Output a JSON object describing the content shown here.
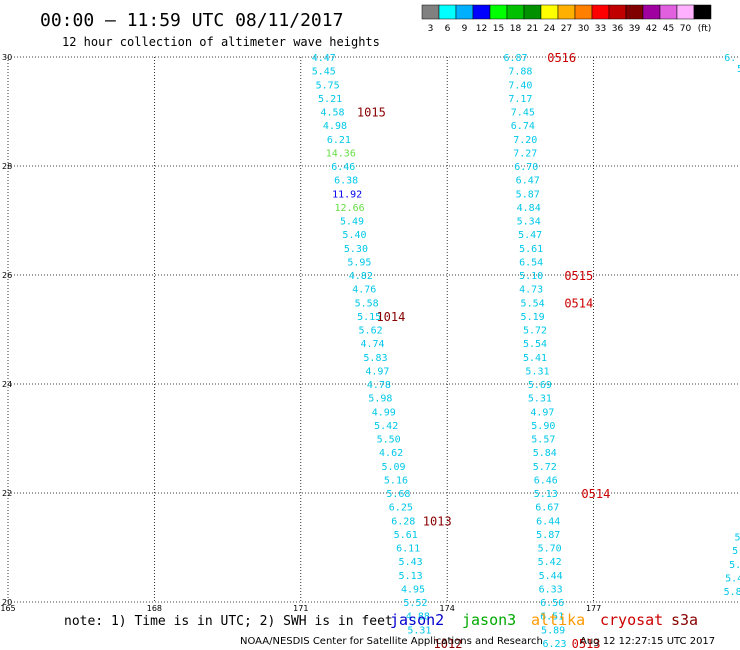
{
  "header": {
    "title": "00:00 – 11:59 UTC 08/11/2017",
    "subtitle": "12 hour collection of altimeter wave heights"
  },
  "colorbar": {
    "colors": [
      "#808080",
      "#00ffff",
      "#00b0ff",
      "#0000ff",
      "#00ff00",
      "#00c000",
      "#009000",
      "#ffff00",
      "#ffb000",
      "#ff8000",
      "#ff0000",
      "#c00000",
      "#800000",
      "#a000a0",
      "#e060e0",
      "#ffb0ff",
      "#000000"
    ],
    "labels": [
      "3",
      "6",
      "9",
      "12",
      "15",
      "18",
      "21",
      "24",
      "27",
      "30",
      "33",
      "36",
      "39",
      "42",
      "45",
      "70",
      "(ft)"
    ]
  },
  "footer": {
    "note": "note:  1) Time is in UTC;  2) SWH is in feet",
    "credit": "NOAA/NESDIS Center for Satellite Applications and Research",
    "timestamp": "Aug 12 12:27:15 UTC 2017",
    "satellites": [
      {
        "name": "jason2",
        "color": "#0000cc"
      },
      {
        "name": "jason3",
        "color": "#00aa00"
      },
      {
        "name": "altika",
        "color": "#ff9900"
      },
      {
        "name": "cryosat",
        "color": "#cc0000"
      },
      {
        "name": "s3a",
        "color": "#880000"
      }
    ]
  },
  "chart_data": {
    "type": "scatter",
    "xlim": [
      165,
      180
    ],
    "ylim": [
      20,
      30
    ],
    "x_ticks": [
      165,
      168,
      171,
      174,
      177
    ],
    "y_ticks": [
      20,
      22,
      24,
      26,
      28,
      30
    ],
    "x_tick_labels": [
      "165",
      "168",
      "171",
      "174",
      "177"
    ],
    "y_tick_labels": [
      "20",
      "22",
      "24",
      "26",
      "28",
      "30"
    ],
    "grid": "dotted",
    "tracks": [
      {
        "name": "track-1-left",
        "color_default": "#00c8e8",
        "points": [
          {
            "lon": 171.47,
            "lat": 30.0,
            "v": "4.47"
          },
          {
            "lon": 171.47,
            "lat": 29.75,
            "v": "5.45"
          },
          {
            "lon": 171.55,
            "lat": 29.5,
            "v": "5.75"
          },
          {
            "lon": 171.6,
            "lat": 29.25,
            "v": "5.21"
          },
          {
            "lon": 171.65,
            "lat": 29.0,
            "v": "4.58"
          },
          {
            "lon": 171.7,
            "lat": 28.75,
            "v": "4.98"
          },
          {
            "lon": 171.78,
            "lat": 28.5,
            "v": "6.21"
          },
          {
            "lon": 171.82,
            "lat": 28.25,
            "v": "14.36",
            "color": "#66dd44"
          },
          {
            "lon": 171.87,
            "lat": 28.0,
            "v": "6.46"
          },
          {
            "lon": 171.93,
            "lat": 27.75,
            "v": "6.38"
          },
          {
            "lon": 171.95,
            "lat": 27.5,
            "v": "11.92",
            "color": "#0000ee"
          },
          {
            "lon": 172.0,
            "lat": 27.25,
            "v": "12.66",
            "color": "#66dd44"
          },
          {
            "lon": 172.05,
            "lat": 27.0,
            "v": "5.49"
          },
          {
            "lon": 172.1,
            "lat": 26.75,
            "v": "5.40"
          },
          {
            "lon": 172.13,
            "lat": 26.5,
            "v": "5.30"
          },
          {
            "lon": 172.2,
            "lat": 26.25,
            "v": "5.95"
          },
          {
            "lon": 172.23,
            "lat": 26.0,
            "v": "4.82"
          },
          {
            "lon": 172.3,
            "lat": 25.75,
            "v": "4.76"
          },
          {
            "lon": 172.35,
            "lat": 25.5,
            "v": "5.58"
          },
          {
            "lon": 172.4,
            "lat": 25.25,
            "v": "5.15"
          },
          {
            "lon": 172.43,
            "lat": 25.0,
            "v": "5.62"
          },
          {
            "lon": 172.47,
            "lat": 24.75,
            "v": "4.74"
          },
          {
            "lon": 172.53,
            "lat": 24.5,
            "v": "5.83"
          },
          {
            "lon": 172.57,
            "lat": 24.25,
            "v": "4.97"
          },
          {
            "lon": 172.6,
            "lat": 24.0,
            "v": "4.78"
          },
          {
            "lon": 172.63,
            "lat": 23.75,
            "v": "5.98"
          },
          {
            "lon": 172.7,
            "lat": 23.5,
            "v": "4.99"
          },
          {
            "lon": 172.75,
            "lat": 23.25,
            "v": "5.42"
          },
          {
            "lon": 172.8,
            "lat": 23.0,
            "v": "5.50"
          },
          {
            "lon": 172.85,
            "lat": 22.75,
            "v": "4.62"
          },
          {
            "lon": 172.9,
            "lat": 22.5,
            "v": "5.09"
          },
          {
            "lon": 172.95,
            "lat": 22.25,
            "v": "5.16"
          },
          {
            "lon": 173.0,
            "lat": 22.0,
            "v": "5.68"
          },
          {
            "lon": 173.05,
            "lat": 21.75,
            "v": "6.25"
          },
          {
            "lon": 173.1,
            "lat": 21.5,
            "v": "6.28"
          },
          {
            "lon": 173.15,
            "lat": 21.25,
            "v": "5.61"
          },
          {
            "lon": 173.2,
            "lat": 21.0,
            "v": "6.11"
          },
          {
            "lon": 173.25,
            "lat": 20.75,
            "v": "5.43"
          },
          {
            "lon": 173.25,
            "lat": 20.5,
            "v": "5.13"
          },
          {
            "lon": 173.3,
            "lat": 20.25,
            "v": "4.95"
          },
          {
            "lon": 173.35,
            "lat": 20.0,
            "v": "5.52"
          },
          {
            "lon": 173.4,
            "lat": 19.75,
            "v": "4.88"
          },
          {
            "lon": 173.43,
            "lat": 19.5,
            "v": "5.31"
          }
        ]
      },
      {
        "name": "track-2-right",
        "color_default": "#00c8e8",
        "points": [
          {
            "lon": 175.4,
            "lat": 30.0,
            "v": "6.87"
          },
          {
            "lon": 175.5,
            "lat": 29.75,
            "v": "7.88"
          },
          {
            "lon": 175.5,
            "lat": 29.5,
            "v": "7.40"
          },
          {
            "lon": 175.5,
            "lat": 29.25,
            "v": "7.17"
          },
          {
            "lon": 175.55,
            "lat": 29.0,
            "v": "7.45"
          },
          {
            "lon": 175.55,
            "lat": 28.75,
            "v": "6.74"
          },
          {
            "lon": 175.6,
            "lat": 28.5,
            "v": "7.20"
          },
          {
            "lon": 175.6,
            "lat": 28.25,
            "v": "7.27"
          },
          {
            "lon": 175.62,
            "lat": 28.0,
            "v": "6.70"
          },
          {
            "lon": 175.65,
            "lat": 27.75,
            "v": "6.47"
          },
          {
            "lon": 175.65,
            "lat": 27.5,
            "v": "5.87"
          },
          {
            "lon": 175.67,
            "lat": 27.25,
            "v": "4.84"
          },
          {
            "lon": 175.67,
            "lat": 27.0,
            "v": "5.34"
          },
          {
            "lon": 175.7,
            "lat": 26.75,
            "v": "5.47"
          },
          {
            "lon": 175.72,
            "lat": 26.5,
            "v": "5.61"
          },
          {
            "lon": 175.72,
            "lat": 26.25,
            "v": "6.54"
          },
          {
            "lon": 175.72,
            "lat": 26.0,
            "v": "5.10"
          },
          {
            "lon": 175.72,
            "lat": 25.75,
            "v": "4.73"
          },
          {
            "lon": 175.75,
            "lat": 25.5,
            "v": "5.54"
          },
          {
            "lon": 175.75,
            "lat": 25.25,
            "v": "5.19"
          },
          {
            "lon": 175.8,
            "lat": 25.0,
            "v": "5.72"
          },
          {
            "lon": 175.8,
            "lat": 24.75,
            "v": "5.54"
          },
          {
            "lon": 175.8,
            "lat": 24.5,
            "v": "5.41"
          },
          {
            "lon": 175.85,
            "lat": 24.25,
            "v": "5.31"
          },
          {
            "lon": 175.9,
            "lat": 24.0,
            "v": "5.69"
          },
          {
            "lon": 175.9,
            "lat": 23.75,
            "v": "5.31"
          },
          {
            "lon": 175.95,
            "lat": 23.5,
            "v": "4.97"
          },
          {
            "lon": 175.97,
            "lat": 23.25,
            "v": "5.90"
          },
          {
            "lon": 175.97,
            "lat": 23.0,
            "v": "5.57"
          },
          {
            "lon": 176.0,
            "lat": 22.75,
            "v": "5.84"
          },
          {
            "lon": 176.0,
            "lat": 22.5,
            "v": "5.72"
          },
          {
            "lon": 176.02,
            "lat": 22.25,
            "v": "6.46"
          },
          {
            "lon": 176.02,
            "lat": 22.0,
            "v": "5.13"
          },
          {
            "lon": 176.05,
            "lat": 21.75,
            "v": "6.67"
          },
          {
            "lon": 176.07,
            "lat": 21.5,
            "v": "6.44"
          },
          {
            "lon": 176.07,
            "lat": 21.25,
            "v": "5.87"
          },
          {
            "lon": 176.1,
            "lat": 21.0,
            "v": "5.70"
          },
          {
            "lon": 176.1,
            "lat": 20.75,
            "v": "5.42"
          },
          {
            "lon": 176.12,
            "lat": 20.5,
            "v": "5.44"
          },
          {
            "lon": 176.12,
            "lat": 20.25,
            "v": "6.33"
          },
          {
            "lon": 176.15,
            "lat": 20.0,
            "v": "6.56"
          },
          {
            "lon": 176.15,
            "lat": 19.75,
            "v": "6.51"
          },
          {
            "lon": 176.17,
            "lat": 19.5,
            "v": "5.89"
          },
          {
            "lon": 176.2,
            "lat": 19.25,
            "v": "6.23"
          }
        ]
      },
      {
        "name": "track-3-edge",
        "color_default": "#00c8e8",
        "points": [
          {
            "lon": 179.8,
            "lat": 30.0,
            "v": "6."
          },
          {
            "lon": 180.0,
            "lat": 29.8,
            "v": "5"
          },
          {
            "lon": 179.95,
            "lat": 21.2,
            "v": "5"
          },
          {
            "lon": 179.9,
            "lat": 20.95,
            "v": "5"
          },
          {
            "lon": 179.9,
            "lat": 20.7,
            "v": "5."
          },
          {
            "lon": 179.88,
            "lat": 20.45,
            "v": "5.4"
          },
          {
            "lon": 179.85,
            "lat": 20.2,
            "v": "5.8"
          }
        ]
      }
    ],
    "time_labels": [
      {
        "lon": 172.15,
        "lat": 29.0,
        "text": "1015",
        "color": "#880000"
      },
      {
        "lon": 172.55,
        "lat": 25.25,
        "text": "1014",
        "color": "#880000"
      },
      {
        "lon": 173.5,
        "lat": 21.5,
        "text": "1013",
        "color": "#880000"
      },
      {
        "lon": 173.72,
        "lat": 19.25,
        "text": "1012",
        "color": "#880000"
      },
      {
        "lon": 176.05,
        "lat": 30.0,
        "text": "0516",
        "color": "#cc0000"
      },
      {
        "lon": 176.4,
        "lat": 26.0,
        "text": "0515",
        "color": "#cc0000"
      },
      {
        "lon": 176.4,
        "lat": 25.5,
        "text": "0514",
        "color": "#cc0000"
      },
      {
        "lon": 176.75,
        "lat": 22.0,
        "text": "0514",
        "color": "#cc0000"
      },
      {
        "lon": 176.55,
        "lat": 19.25,
        "text": "0513",
        "color": "#cc0000"
      }
    ]
  }
}
